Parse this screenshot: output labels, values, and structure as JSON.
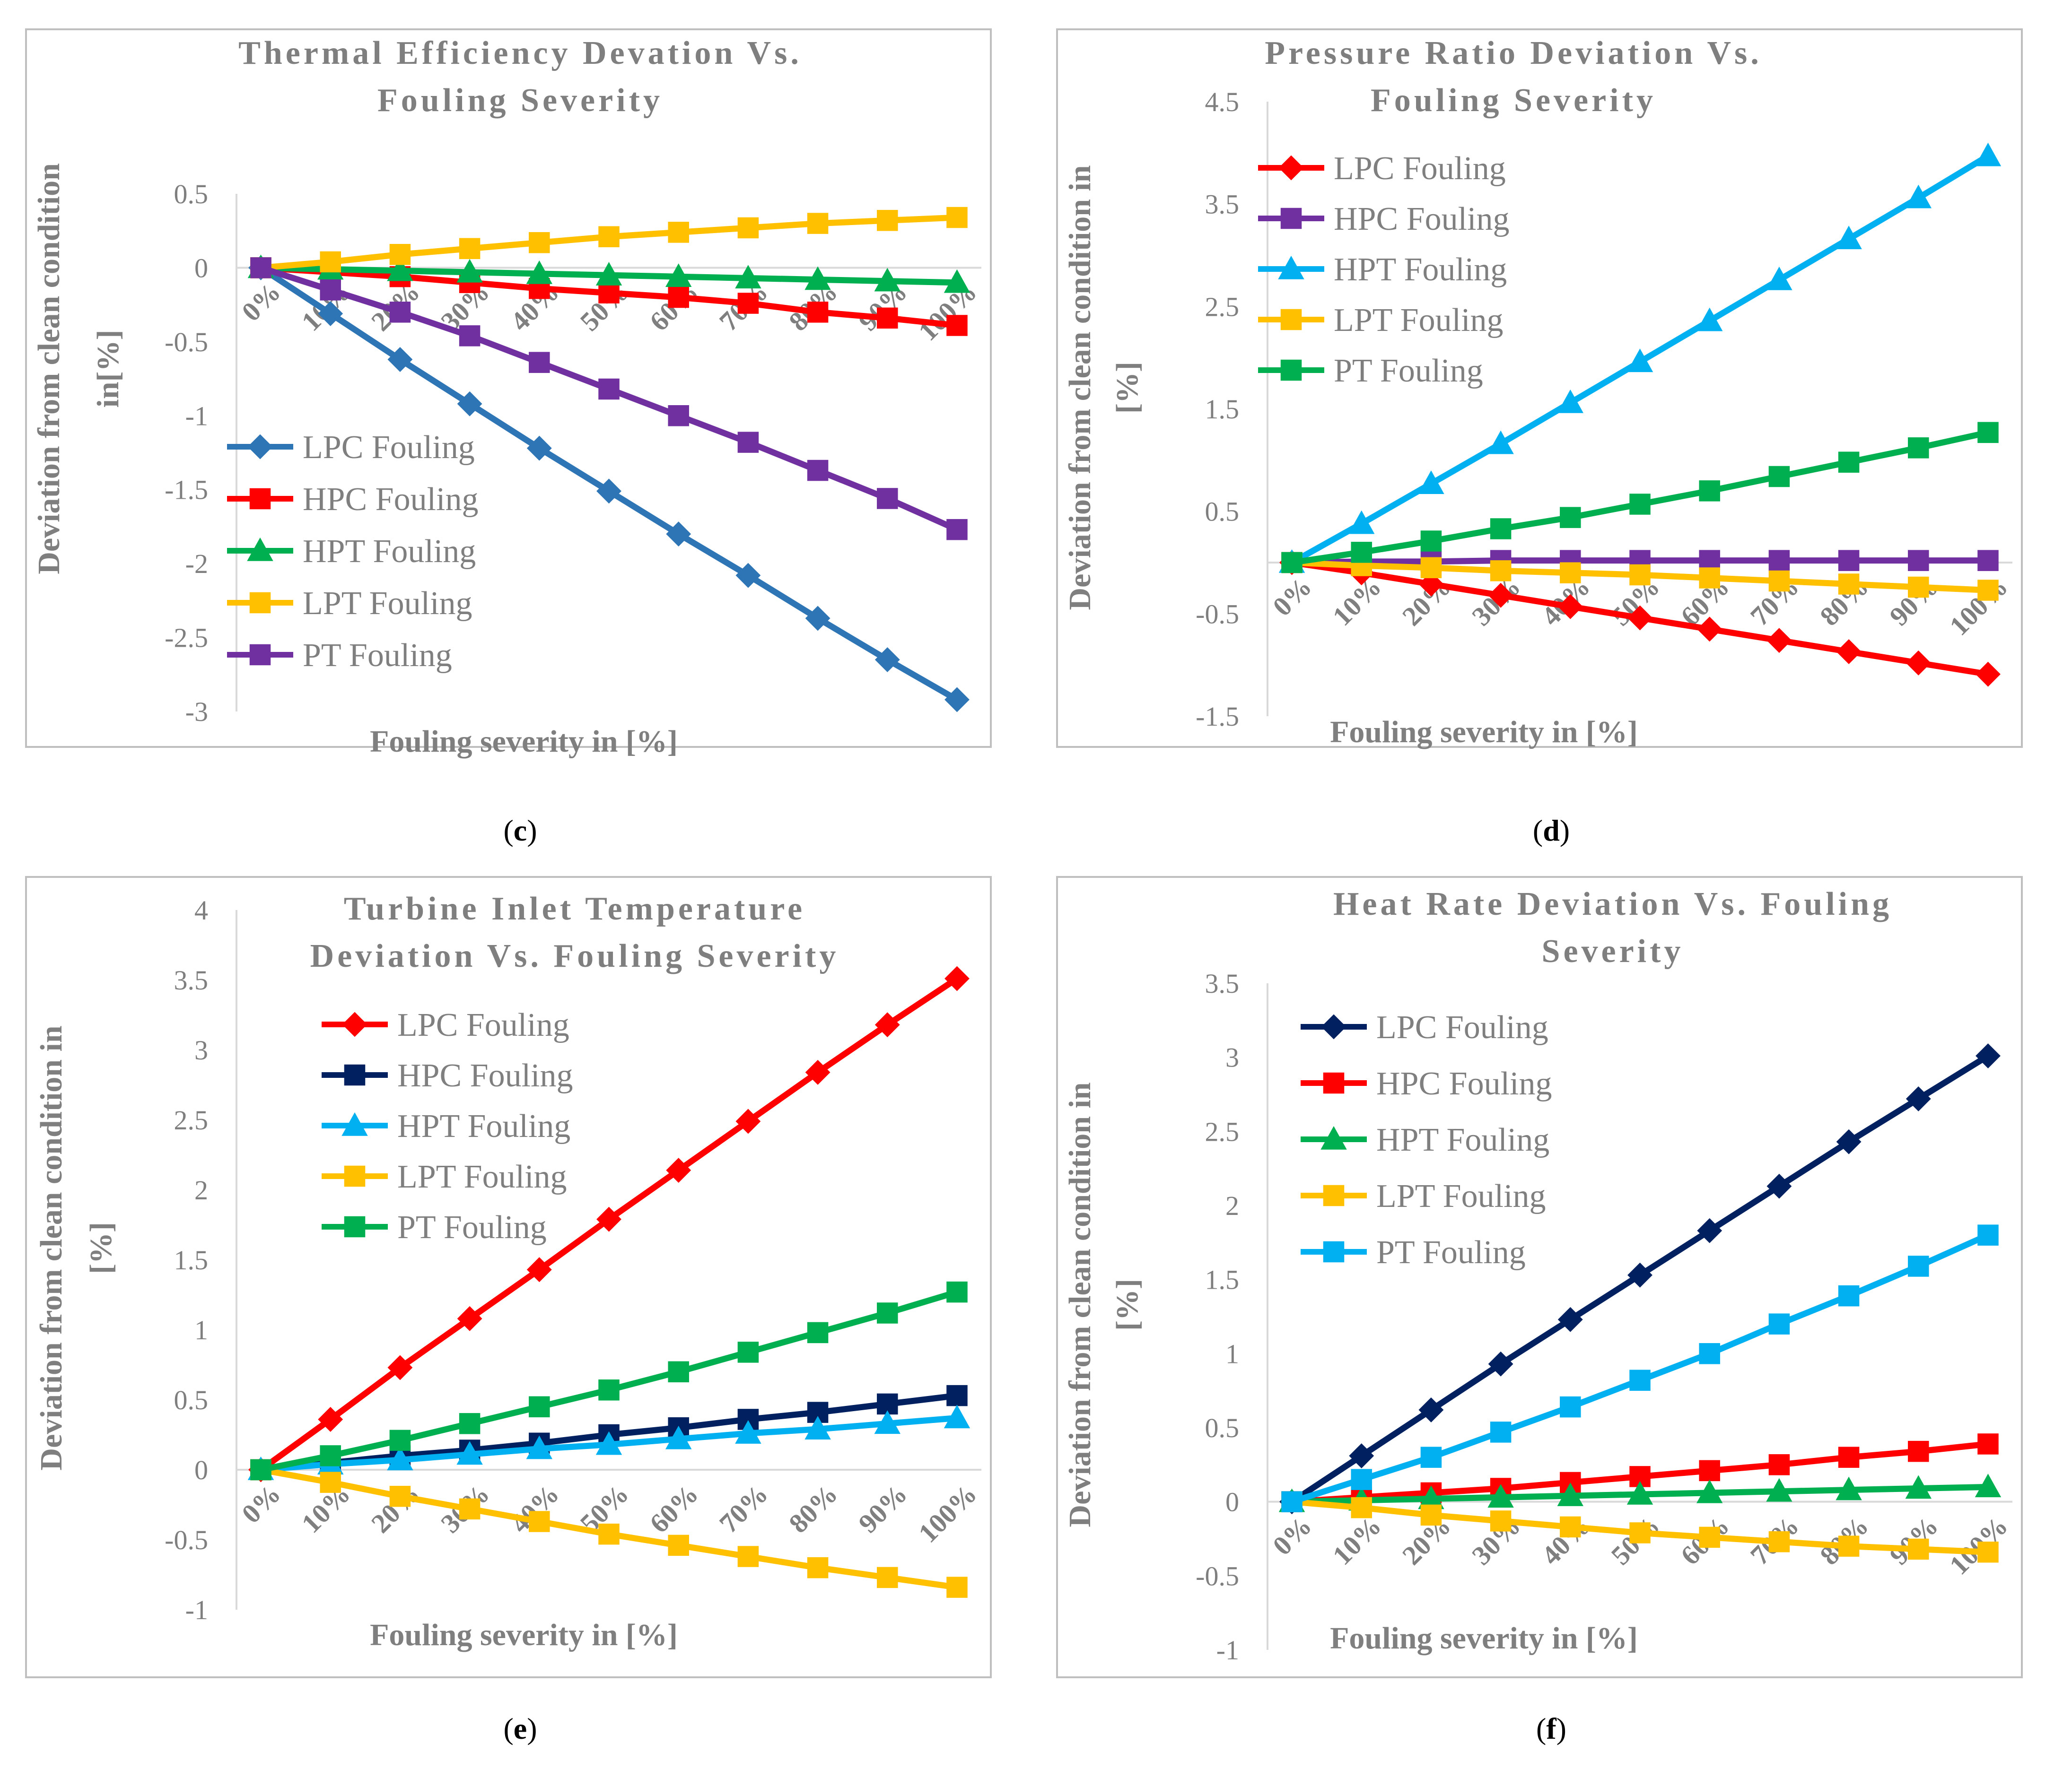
{
  "x_categories": [
    "0%",
    "10%",
    "20%",
    "30%",
    "40%",
    "50%",
    "60%",
    "70%",
    "80%",
    "90%",
    "100%"
  ],
  "panel_labels": [
    {
      "open": "(",
      "letter": "c",
      "close": ")"
    },
    {
      "open": "(",
      "letter": "d",
      "close": ")"
    },
    {
      "open": "(",
      "letter": "e",
      "close": ")"
    },
    {
      "open": "(",
      "letter": "f",
      "close": ")"
    }
  ],
  "chart_data": [
    {
      "type": "line",
      "title_lines": [
        "Thermal Efficiency Devation Vs.",
        "Fouling Severity"
      ],
      "xlabel": "Fouling severity in [%]",
      "ylabel_lines": [
        "Deviation from clean condition",
        "in[%]"
      ],
      "ylim": [
        -3,
        0.5
      ],
      "yticks": [
        0.5,
        0,
        -0.5,
        -1,
        -1.5,
        -2,
        -2.5,
        -3
      ],
      "ytick_labels": [
        "0.5",
        "0",
        "-0.5",
        "-1",
        "-1.5",
        "-2",
        "-2.5",
        "-3"
      ],
      "legend_position": "bottom-left",
      "series": [
        {
          "name": "LPC Fouling",
          "color": "#2e75b6",
          "marker": "diamond",
          "values": [
            0,
            -0.31,
            -0.62,
            -0.92,
            -1.22,
            -1.51,
            -1.8,
            -2.08,
            -2.37,
            -2.65,
            -2.92
          ]
        },
        {
          "name": "HPC Fouling",
          "color": "#ff0000",
          "marker": "square",
          "values": [
            0,
            -0.03,
            -0.06,
            -0.1,
            -0.14,
            -0.17,
            -0.2,
            -0.24,
            -0.3,
            -0.34,
            -0.39
          ]
        },
        {
          "name": "HPT Fouling",
          "color": "#00b050",
          "marker": "triangle",
          "values": [
            0,
            -0.01,
            -0.02,
            -0.03,
            -0.04,
            -0.05,
            -0.06,
            -0.07,
            -0.08,
            -0.09,
            -0.1
          ]
        },
        {
          "name": "LPT Fouling",
          "color": "#ffc000",
          "marker": "square",
          "values": [
            0,
            0.04,
            0.09,
            0.13,
            0.17,
            0.21,
            0.24,
            0.27,
            0.3,
            0.32,
            0.34
          ]
        },
        {
          "name": "PT Fouling",
          "color": "#7030a0",
          "marker": "square",
          "values": [
            0,
            -0.15,
            -0.3,
            -0.46,
            -0.64,
            -0.82,
            -1.0,
            -1.18,
            -1.37,
            -1.56,
            -1.77
          ]
        }
      ]
    },
    {
      "type": "line",
      "title_lines": [
        "Pressure Ratio Deviation Vs.",
        "Fouling Severity"
      ],
      "xlabel": "Fouling severity in [%]",
      "ylabel_lines": [
        "Deviation from clean condition in",
        "[%]"
      ],
      "ylim": [
        -1.5,
        4.5
      ],
      "yticks": [
        4.5,
        3.5,
        2.5,
        1.5,
        0.5,
        -0.5,
        -1.5
      ],
      "ytick_labels": [
        "4.5",
        "3.5",
        "2.5",
        "1.5",
        "0.5",
        "-0.5",
        "-1.5"
      ],
      "legend_position": "top-left",
      "series": [
        {
          "name": "LPC Fouling",
          "color": "#ff0000",
          "marker": "diamond",
          "values": [
            0,
            -0.1,
            -0.21,
            -0.32,
            -0.43,
            -0.54,
            -0.65,
            -0.76,
            -0.87,
            -0.98,
            -1.09
          ]
        },
        {
          "name": "HPC Fouling",
          "color": "#7030a0",
          "marker": "square",
          "values": [
            0,
            0.01,
            0.01,
            0.02,
            0.02,
            0.02,
            0.02,
            0.02,
            0.02,
            0.02,
            0.02
          ]
        },
        {
          "name": "HPT Fouling",
          "color": "#00b0f0",
          "marker": "triangle",
          "values": [
            0,
            0.38,
            0.77,
            1.16,
            1.56,
            1.96,
            2.36,
            2.76,
            3.16,
            3.56,
            3.97
          ]
        },
        {
          "name": "LPT Fouling",
          "color": "#ffc000",
          "marker": "square",
          "values": [
            0,
            -0.03,
            -0.05,
            -0.08,
            -0.1,
            -0.12,
            -0.15,
            -0.18,
            -0.21,
            -0.24,
            -0.27
          ]
        },
        {
          "name": "PT Fouling",
          "color": "#00b050",
          "marker": "square",
          "values": [
            0,
            0.1,
            0.21,
            0.33,
            0.44,
            0.57,
            0.7,
            0.84,
            0.98,
            1.12,
            1.27
          ]
        }
      ]
    },
    {
      "type": "line",
      "title_lines": [
        "Turbine Inlet Temperature",
        "Deviation Vs. Fouling Severity"
      ],
      "xlabel": "Fouling severity in [%]",
      "ylabel_lines": [
        "Deviation from clean condition in",
        "[%]"
      ],
      "ylim": [
        -1,
        4
      ],
      "yticks": [
        4,
        3.5,
        3,
        2.5,
        2,
        1.5,
        1,
        0.5,
        0,
        -0.5,
        -1
      ],
      "ytick_labels": [
        "4",
        "3.5",
        "3",
        "2.5",
        "2",
        "1.5",
        "1",
        "0.5",
        "0",
        "-0.5",
        "-1"
      ],
      "legend_position": "top-left",
      "series": [
        {
          "name": "LPC Fouling",
          "color": "#ff0000",
          "marker": "diamond",
          "values": [
            0,
            0.36,
            0.73,
            1.08,
            1.43,
            1.79,
            2.14,
            2.49,
            2.84,
            3.18,
            3.51
          ]
        },
        {
          "name": "HPC Fouling",
          "color": "#002060",
          "marker": "square",
          "values": [
            0,
            0.05,
            0.1,
            0.14,
            0.19,
            0.25,
            0.3,
            0.36,
            0.41,
            0.47,
            0.53
          ]
        },
        {
          "name": "HPT Fouling",
          "color": "#00b0f0",
          "marker": "triangle",
          "values": [
            0,
            0.04,
            0.07,
            0.11,
            0.15,
            0.18,
            0.22,
            0.26,
            0.29,
            0.33,
            0.37
          ]
        },
        {
          "name": "LPT Fouling",
          "color": "#ffc000",
          "marker": "square",
          "values": [
            0,
            -0.09,
            -0.19,
            -0.28,
            -0.37,
            -0.46,
            -0.54,
            -0.62,
            -0.7,
            -0.77,
            -0.84
          ]
        },
        {
          "name": "PT Fouling",
          "color": "#00b050",
          "marker": "square",
          "values": [
            0,
            0.1,
            0.21,
            0.33,
            0.45,
            0.57,
            0.7,
            0.84,
            0.98,
            1.12,
            1.27
          ]
        }
      ]
    },
    {
      "type": "line",
      "title_lines": [
        "Heat Rate Deviation Vs. Fouling",
        "Severity"
      ],
      "xlabel": "Fouling severity in [%]",
      "ylabel_lines": [
        "Deviation from clean condition in",
        "[%]"
      ],
      "ylim": [
        -1,
        3.5
      ],
      "yticks": [
        3.5,
        3,
        2.5,
        2,
        1.5,
        1,
        0.5,
        0,
        -0.5,
        -1
      ],
      "ytick_labels": [
        "3.5",
        "3",
        "2.5",
        "2",
        "1.5",
        "1",
        "0.5",
        "0",
        "-0.5",
        "-1"
      ],
      "legend_position": "top-left",
      "series": [
        {
          "name": "LPC Fouling",
          "color": "#002060",
          "marker": "diamond",
          "values": [
            0,
            0.31,
            0.62,
            0.93,
            1.23,
            1.53,
            1.83,
            2.13,
            2.43,
            2.72,
            3.01
          ]
        },
        {
          "name": "HPC Fouling",
          "color": "#ff0000",
          "marker": "square",
          "values": [
            0,
            0.03,
            0.06,
            0.09,
            0.13,
            0.17,
            0.21,
            0.25,
            0.3,
            0.34,
            0.39
          ]
        },
        {
          "name": "HPT Fouling",
          "color": "#00b050",
          "marker": "triangle",
          "values": [
            0,
            0.01,
            0.02,
            0.03,
            0.04,
            0.05,
            0.06,
            0.07,
            0.08,
            0.09,
            0.1
          ]
        },
        {
          "name": "LPT Fouling",
          "color": "#ffc000",
          "marker": "square",
          "values": [
            0,
            -0.04,
            -0.09,
            -0.13,
            -0.17,
            -0.21,
            -0.24,
            -0.27,
            -0.3,
            -0.32,
            -0.34
          ]
        },
        {
          "name": "PT Fouling",
          "color": "#00b0f0",
          "marker": "square",
          "values": [
            0,
            0.15,
            0.3,
            0.47,
            0.64,
            0.82,
            1.0,
            1.2,
            1.39,
            1.59,
            1.8
          ]
        }
      ]
    }
  ]
}
